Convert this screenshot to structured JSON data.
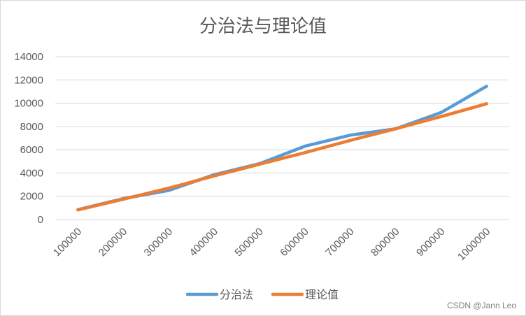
{
  "chart_data": {
    "type": "line",
    "title": "分治法与理论值",
    "xlabel": "",
    "ylabel": "",
    "categories": [
      "100000",
      "200000",
      "300000",
      "400000",
      "500000",
      "600000",
      "700000",
      "800000",
      "900000",
      "1000000"
    ],
    "series": [
      {
        "name": "分治法",
        "color": "#5b9bd5",
        "values": [
          850,
          1800,
          2500,
          3850,
          4800,
          6300,
          7250,
          7800,
          9200,
          11450
        ]
      },
      {
        "name": "理论值",
        "color": "#ed7d31",
        "values": [
          830,
          1750,
          2700,
          3750,
          4750,
          5750,
          6800,
          7800,
          8850,
          9950
        ]
      }
    ],
    "yticks": [
      "0",
      "2000",
      "4000",
      "6000",
      "8000",
      "10000",
      "12000",
      "14000"
    ],
    "ylim": [
      0,
      14000
    ],
    "grid": true,
    "legend_position": "bottom"
  },
  "watermark": "CSDN @Jann Leo"
}
